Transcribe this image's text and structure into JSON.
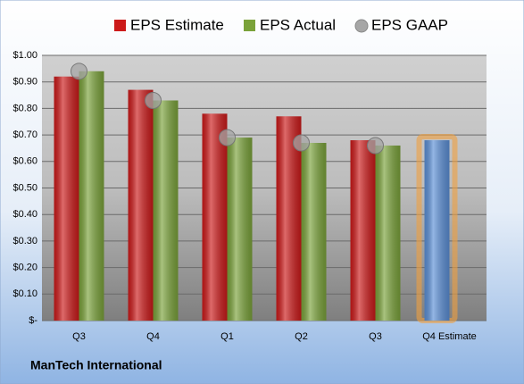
{
  "chart_data": {
    "type": "bar",
    "footer": "ManTech International",
    "categories": [
      "Q3",
      "Q4",
      "Q1",
      "Q2",
      "Q3",
      "Q4 Estimate"
    ],
    "series": [
      {
        "name": "EPS Estimate",
        "color": "#cc1a1a",
        "point_colors": [
          "#cc1a1a",
          "#cc1a1a",
          "#cc1a1a",
          "#cc1a1a",
          "#cc1a1a",
          "#5b8fd6"
        ],
        "values": [
          0.92,
          0.87,
          0.78,
          0.77,
          0.68,
          0.68
        ]
      },
      {
        "name": "EPS Actual",
        "color": "#7aa23a",
        "values": [
          0.94,
          0.83,
          0.69,
          0.67,
          0.66,
          null
        ]
      },
      {
        "name": "EPS GAAP",
        "color": "#a6a6a6",
        "marker": "circle",
        "values": [
          0.94,
          0.83,
          0.69,
          0.67,
          0.66,
          null
        ]
      }
    ],
    "ylim": [
      0,
      1
    ],
    "yticks": [
      {
        "value": 0,
        "label": "$-"
      },
      {
        "value": 0.1,
        "label": "$0.10"
      },
      {
        "value": 0.2,
        "label": "$0.20"
      },
      {
        "value": 0.3,
        "label": "$0.30"
      },
      {
        "value": 0.4,
        "label": "$0.40"
      },
      {
        "value": 0.5,
        "label": "$0.50"
      },
      {
        "value": 0.6,
        "label": "$0.60"
      },
      {
        "value": 0.7,
        "label": "$0.70"
      },
      {
        "value": 0.8,
        "label": "$0.80"
      },
      {
        "value": 0.9,
        "label": "$0.90"
      },
      {
        "value": 1,
        "label": "$1.00"
      }
    ],
    "grid": true,
    "legend": "top"
  }
}
